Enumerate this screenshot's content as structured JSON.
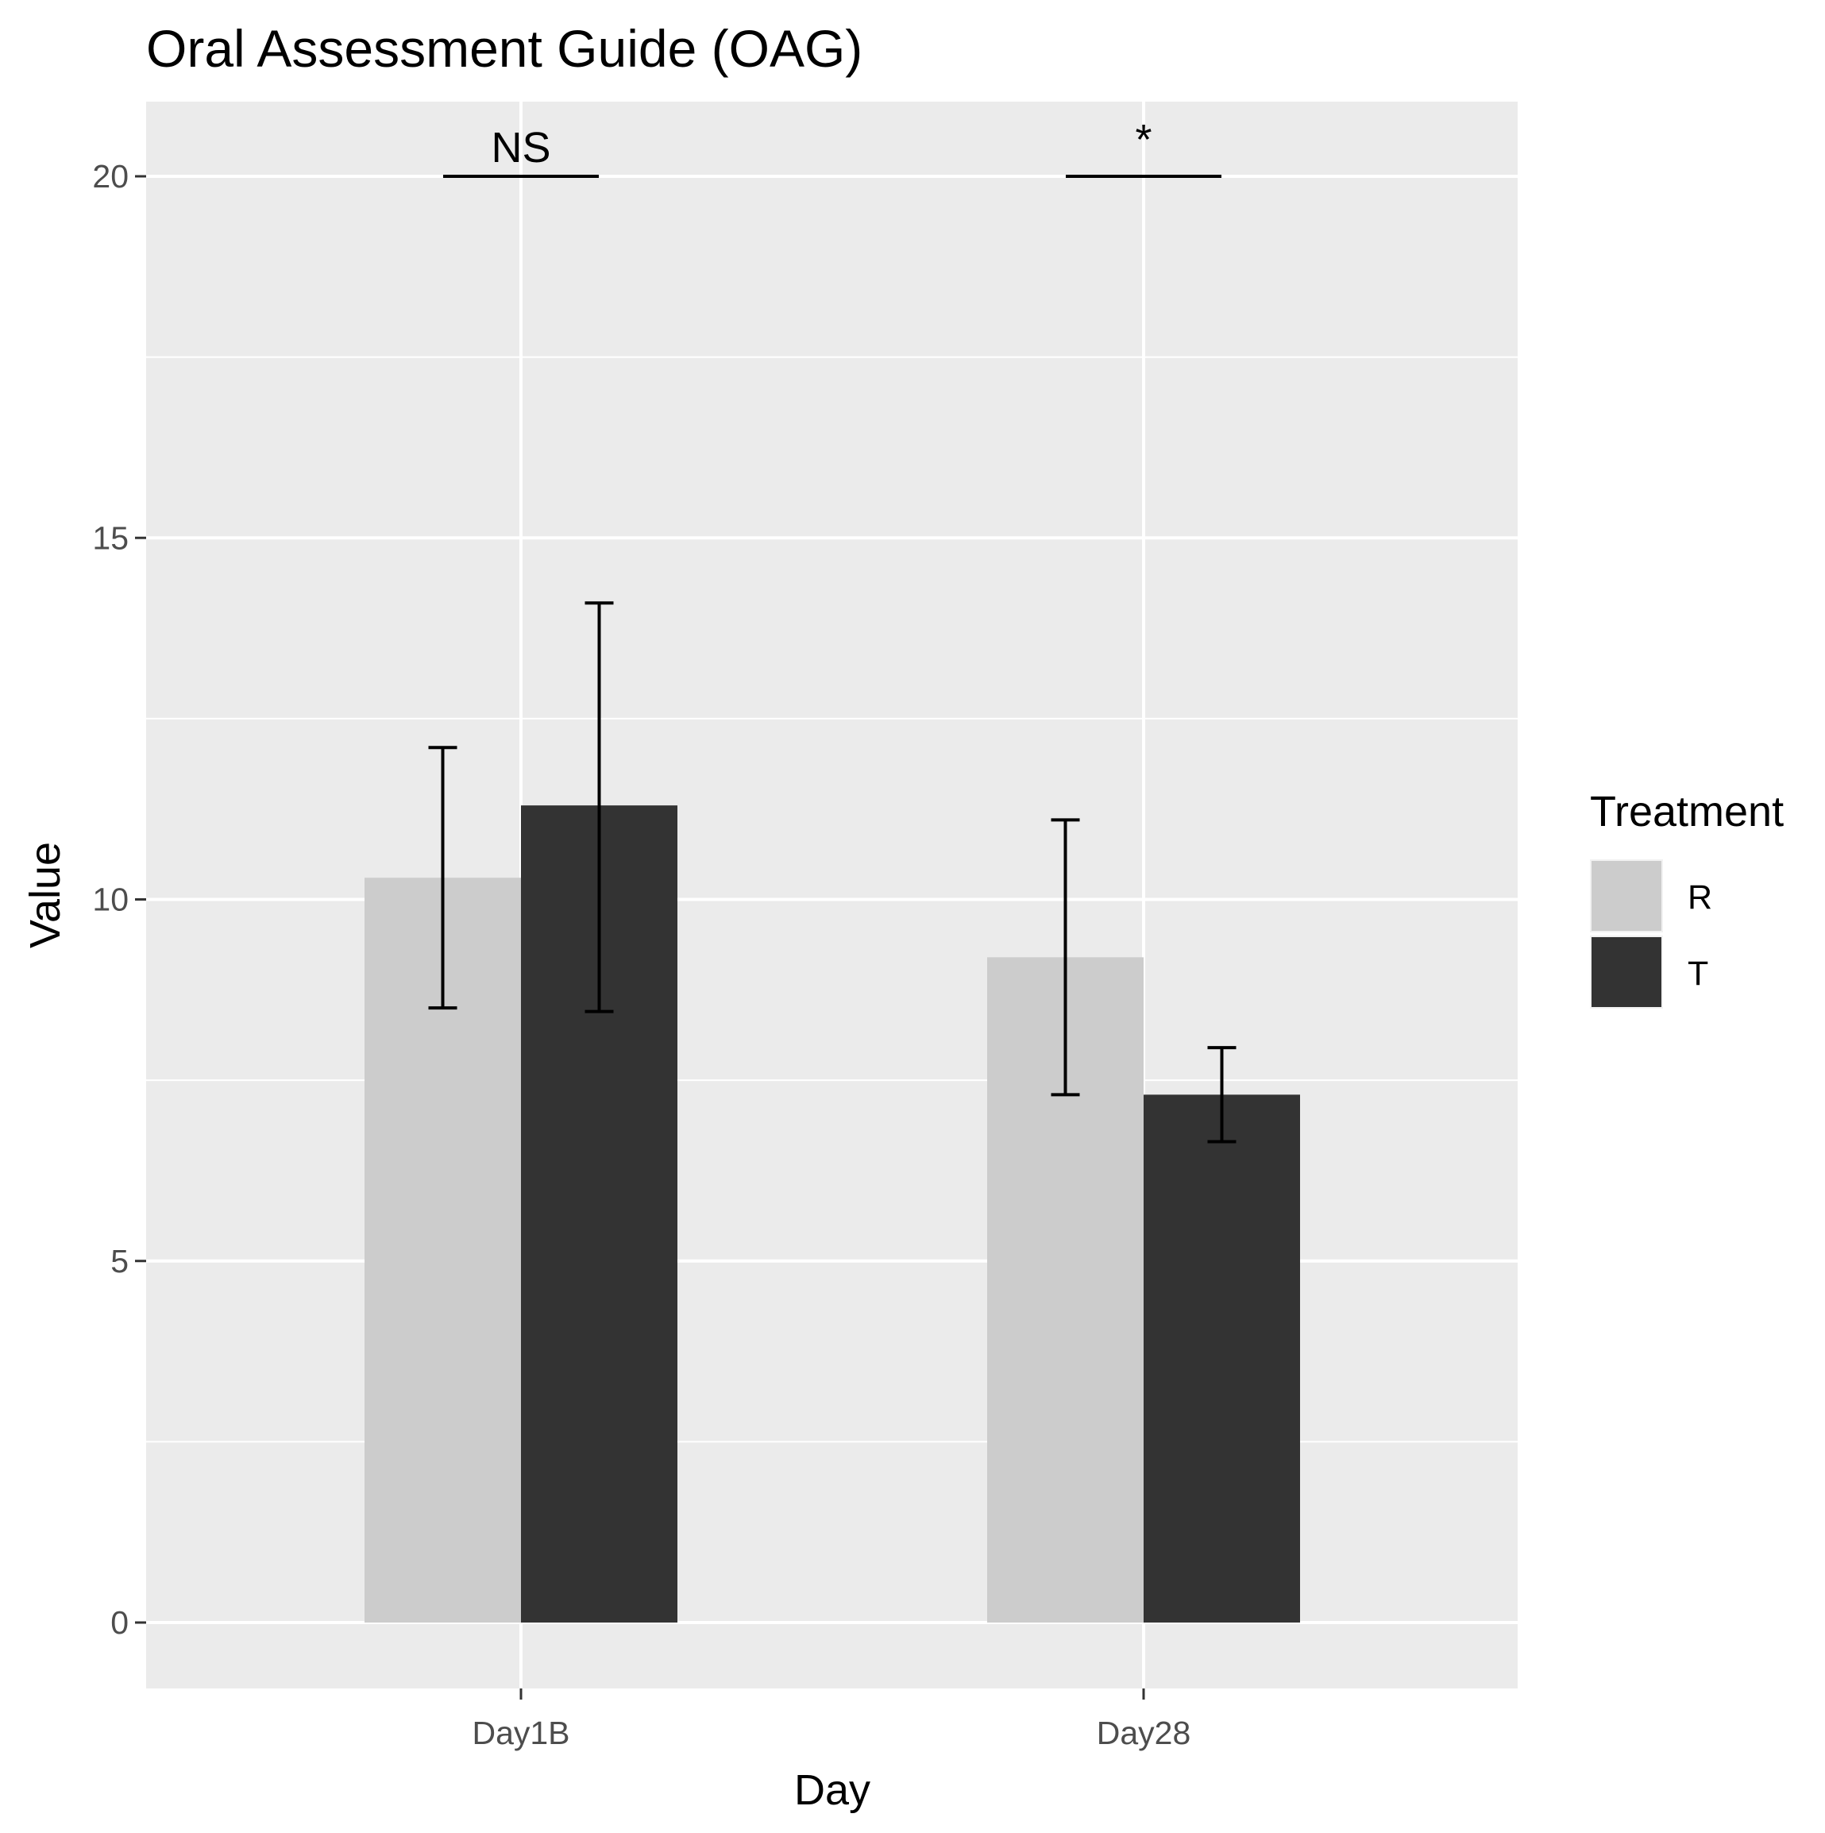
{
  "chart_data": {
    "type": "bar",
    "title": "Oral Assessment Guide (OAG)",
    "xlabel": "Day",
    "ylabel": "Value",
    "categories": [
      "Day1B",
      "Day28"
    ],
    "ylim": [
      -1,
      21
    ],
    "yticks": [
      0,
      5,
      10,
      15,
      20
    ],
    "grid": true,
    "legend": {
      "title": "Treatment",
      "position": "right"
    },
    "series": [
      {
        "name": "R",
        "color": "#cccccc",
        "values": [
          10.3,
          9.2
        ],
        "error_lower": [
          8.5,
          7.3
        ],
        "error_upper": [
          12.1,
          11.1
        ]
      },
      {
        "name": "T",
        "color": "#333333",
        "values": [
          11.3,
          7.3
        ],
        "error_lower": [
          8.45,
          6.65
        ],
        "error_upper": [
          14.1,
          7.95
        ]
      }
    ],
    "annotations": [
      {
        "category": "Day1B",
        "label": "NS",
        "y": 20
      },
      {
        "category": "Day28",
        "label": "*",
        "y": 20
      }
    ]
  },
  "colors": {
    "panel_background": "#ebebeb",
    "grid_major": "#ffffff",
    "error_bar": "#000000"
  }
}
